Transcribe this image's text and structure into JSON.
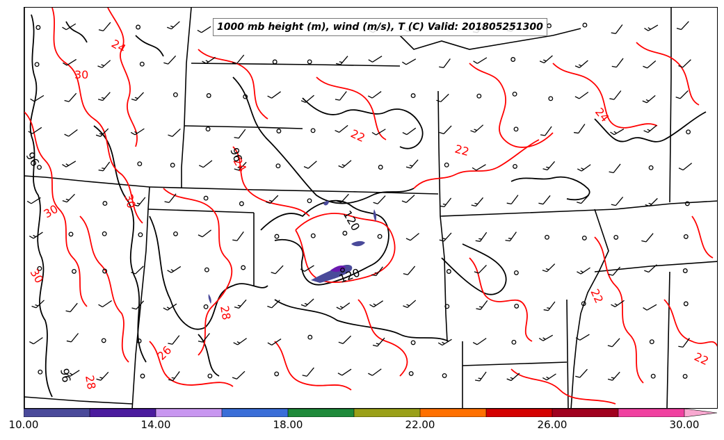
{
  "title": "1000 mb height (m), wind (m/s), T (C) Valid: 201805251300",
  "colors": {
    "temperature_contour": "#ff0000",
    "height_contour": "#000000",
    "boundaries": "#000000"
  },
  "icons": {
    "wind_barb": "wind-barb-icon",
    "calm_wind": "calm-circle-icon"
  },
  "contour_labels": {
    "temperature": [
      "24",
      "30",
      "22",
      "22",
      "24",
      "24",
      "30",
      "30",
      "30",
      "28",
      "26",
      "22",
      "22",
      "28"
    ],
    "height": [
      "96",
      "96",
      "120",
      "120",
      "96"
    ]
  },
  "colorbar": {
    "segment_colors": [
      "#4a4a9a",
      "#4b1b9e",
      "#c896f0",
      "#3a6ed8",
      "#1e8a3a",
      "#9aa018",
      "#ff7000",
      "#d40000",
      "#a0001e",
      "#f040a0",
      "#f8a8d0"
    ],
    "tick_labels": [
      "10.00",
      "14.00",
      "18.00",
      "22.00",
      "26.00",
      "30.00"
    ]
  }
}
